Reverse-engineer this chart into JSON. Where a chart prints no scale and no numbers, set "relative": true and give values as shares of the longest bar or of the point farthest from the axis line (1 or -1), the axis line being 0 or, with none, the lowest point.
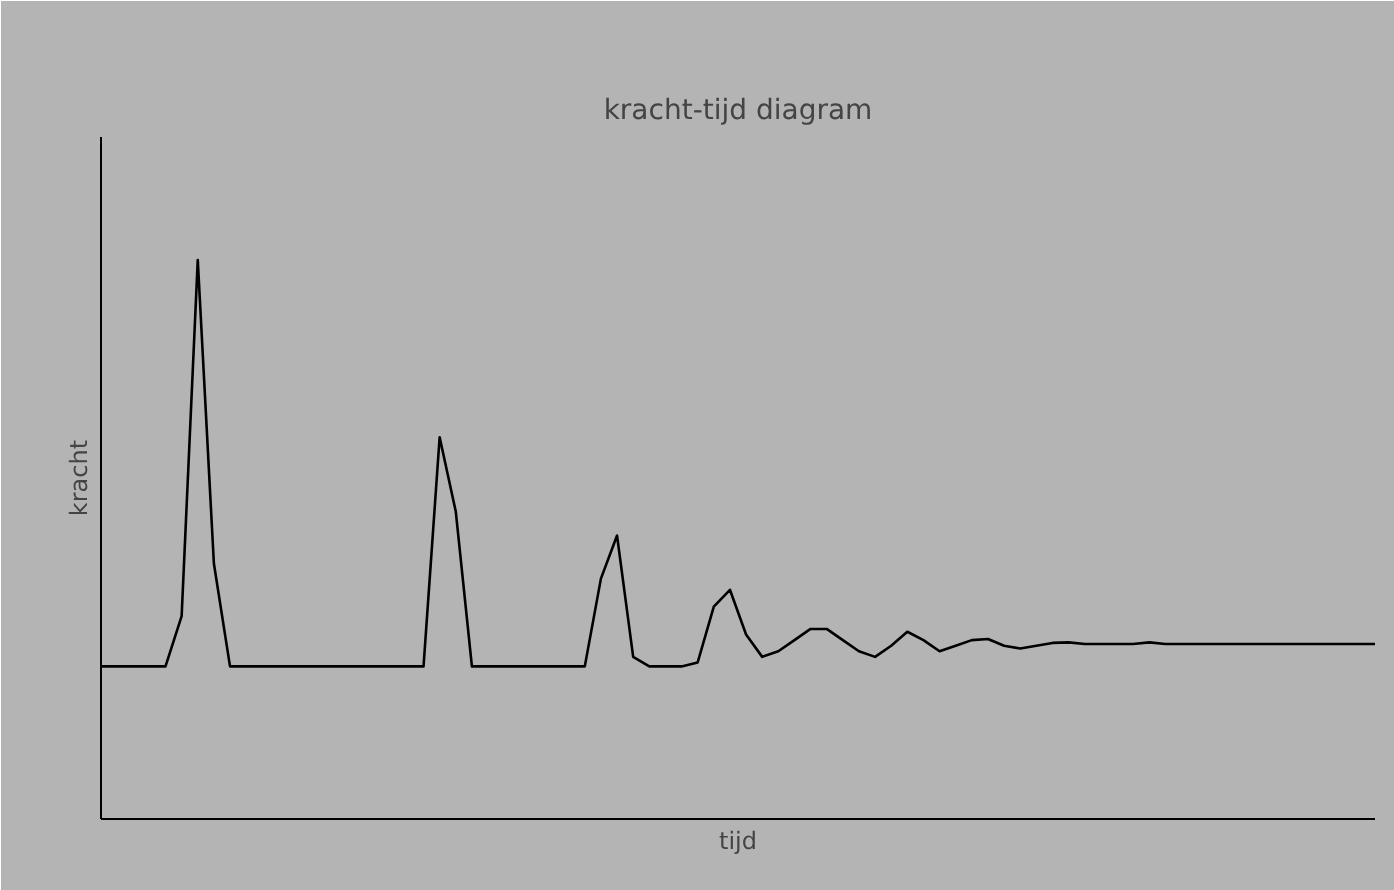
{
  "chart_data": {
    "type": "line",
    "title": "kracht-tijd diagram",
    "xlabel": "tijd",
    "ylabel": "kracht",
    "relative": true,
    "tick_labels": false,
    "marker": "none",
    "line_style": "solid",
    "categories": [
      null,
      null,
      null,
      null,
      null,
      null,
      null,
      null,
      null,
      null,
      null,
      null,
      null,
      null,
      null,
      null,
      null,
      null,
      null,
      null,
      null,
      null,
      null,
      null,
      null,
      null,
      null,
      null,
      null,
      null,
      null,
      null,
      null,
      null,
      null,
      null,
      null,
      null,
      null,
      null,
      null,
      null,
      null,
      null,
      null,
      null,
      null,
      null,
      null,
      null,
      null,
      null,
      null,
      null,
      null,
      null,
      null,
      null,
      null,
      null,
      null,
      null,
      null,
      null,
      null,
      null,
      null,
      null,
      null,
      null,
      null,
      null,
      null,
      null,
      null,
      null,
      null,
      null,
      null,
      null
    ],
    "series": [
      {
        "color": "#000000",
        "values": [
          0.273,
          0.273,
          0.273,
          0.273,
          0.273,
          0.363,
          1.0,
          0.457,
          0.273,
          0.273,
          0.273,
          0.273,
          0.273,
          0.273,
          0.273,
          0.273,
          0.273,
          0.273,
          0.273,
          0.273,
          0.273,
          0.683,
          0.55,
          0.273,
          0.273,
          0.273,
          0.273,
          0.273,
          0.273,
          0.273,
          0.273,
          0.43,
          0.507,
          0.29,
          0.273,
          0.273,
          0.273,
          0.28,
          0.38,
          0.41,
          0.33,
          0.29,
          0.3,
          0.32,
          0.34,
          0.34,
          0.32,
          0.3,
          0.29,
          0.31,
          0.335,
          0.32,
          0.3,
          0.31,
          0.32,
          0.322,
          0.31,
          0.305,
          0.31,
          0.315,
          0.316,
          0.313,
          0.313,
          0.313,
          0.313,
          0.316,
          0.313,
          0.313,
          0.313,
          0.313,
          0.313,
          0.313,
          0.313,
          0.313,
          0.313,
          0.313,
          0.313,
          0.313,
          0.313,
          0.313
        ]
      }
    ]
  }
}
